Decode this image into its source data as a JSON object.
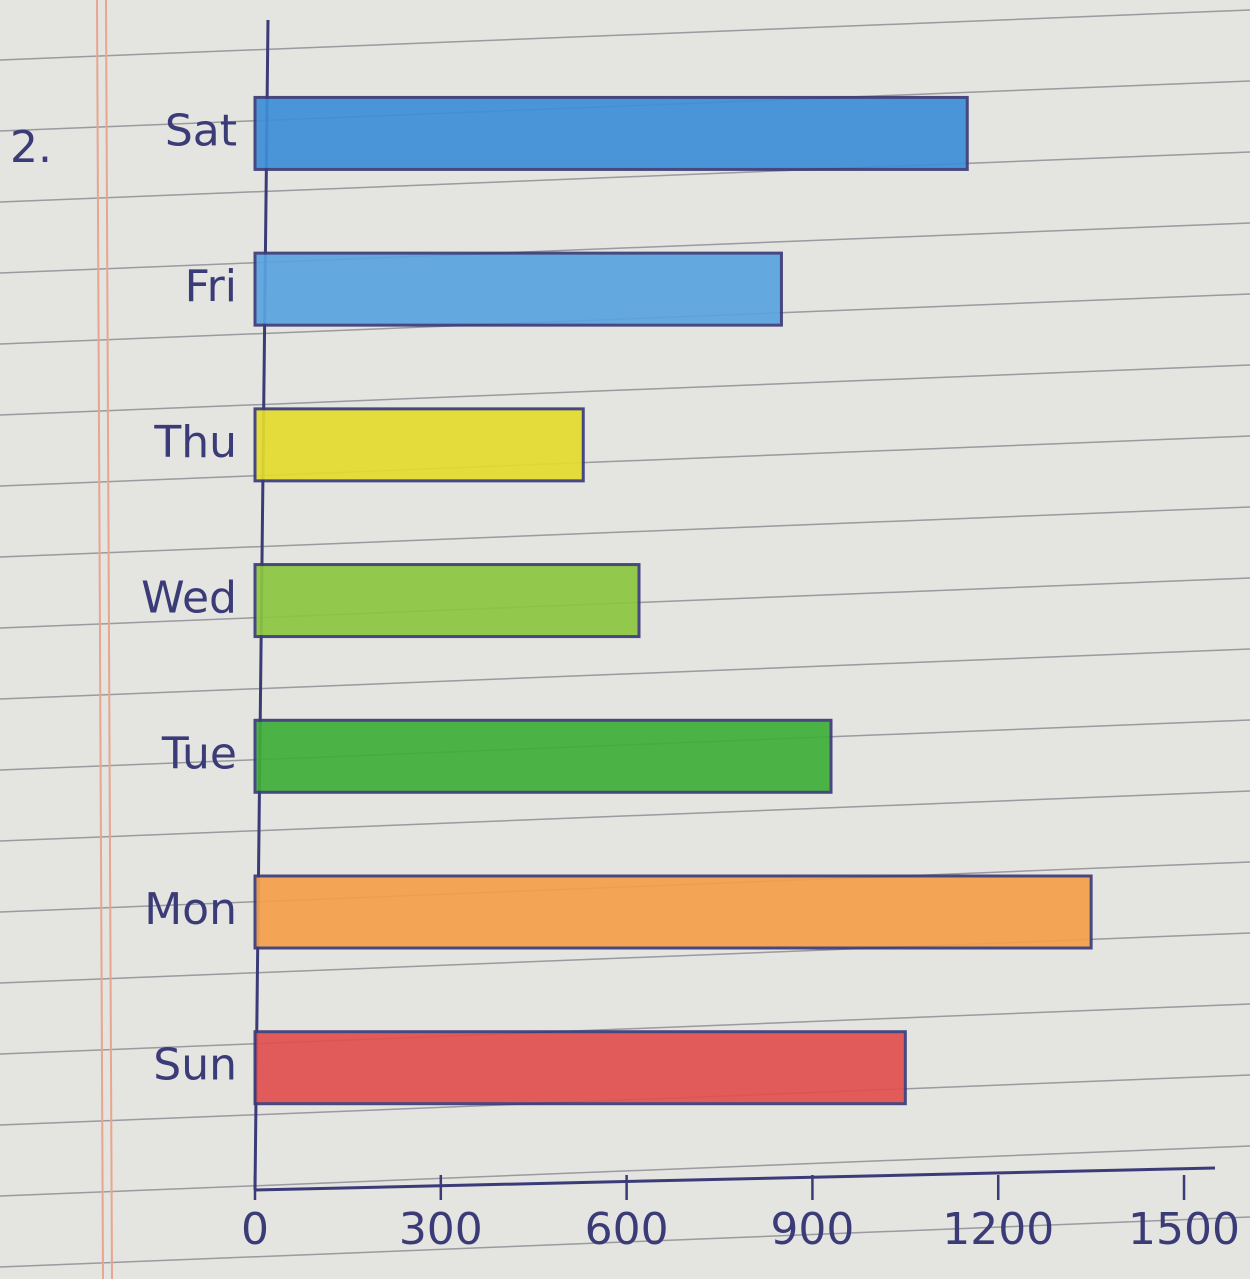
{
  "chart_data": {
    "type": "bar",
    "orientation": "horizontal",
    "annotation": "2.",
    "categories": [
      "Sat",
      "Fri",
      "Thu",
      "Wed",
      "Tue",
      "Mon",
      "Sun"
    ],
    "values": [
      1150,
      850,
      530,
      620,
      930,
      1350,
      1050
    ],
    "colors": [
      "#3d8ed8",
      "#5aa3e0",
      "#e3dc2e",
      "#8cc63f",
      "#3fae3a",
      "#f5a04a",
      "#e0504e"
    ],
    "xlim": [
      0,
      1550
    ],
    "xticks": [
      0,
      300,
      600,
      900,
      1200,
      1500
    ]
  }
}
